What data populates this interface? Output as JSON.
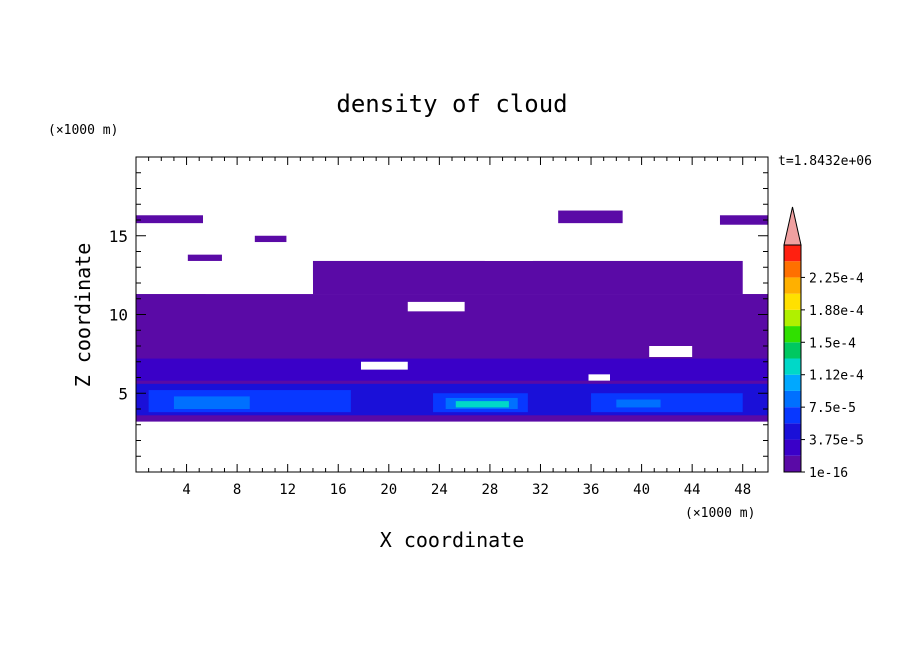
{
  "chart_data": {
    "type": "heatmap",
    "title": "density of cloud",
    "time_label": "t=1.8432e+06",
    "xlabel": "X coordinate",
    "ylabel": "Z coordinate",
    "x_unit": "(×1000 m)",
    "y_unit": "(×1000 m)",
    "xlim": [
      0,
      50
    ],
    "ylim": [
      0,
      20
    ],
    "x_ticks": [
      "4",
      "8",
      "12",
      "16",
      "20",
      "24",
      "28",
      "32",
      "36",
      "40",
      "44",
      "48"
    ],
    "y_ticks": [
      "5",
      "10",
      "15"
    ],
    "colorbar": {
      "labels": [
        "2.25e-4",
        "1.88e-4",
        "1.5e-4",
        "1.12e-4",
        "7.5e-5",
        "3.75e-5",
        "1e-16"
      ],
      "levels": [
        1e-16,
        1.875e-05,
        3.75e-05,
        5.625e-05,
        7.5e-05,
        9.375e-05,
        0.000112,
        0.00013125,
        0.00015,
        0.00016875,
        0.000188,
        0.00020625,
        0.000225,
        0.00024375
      ],
      "colors": [
        "#5a0aa6",
        "#3a00c8",
        "#1a10d8",
        "#0838ff",
        "#0070ff",
        "#00a8ff",
        "#00d8c8",
        "#00c860",
        "#30e000",
        "#b0f000",
        "#ffe000",
        "#ffb000",
        "#ff7000",
        "#ff2010"
      ],
      "over_color": "#f0a0a0"
    },
    "regions": [
      {
        "level": 0,
        "x": [
          0,
          50
        ],
        "y": [
          3.2,
          11.3
        ]
      },
      {
        "level": 0,
        "x": [
          14,
          48
        ],
        "y": [
          11.3,
          13.4
        ]
      },
      {
        "level": 0,
        "x": [
          0,
          5.3
        ],
        "y": [
          15.8,
          16.3
        ]
      },
      {
        "level": 0,
        "x": [
          33.4,
          38.5
        ],
        "y": [
          15.8,
          16.6
        ]
      },
      {
        "level": 0,
        "x": [
          46.2,
          50
        ],
        "y": [
          15.7,
          16.3
        ]
      },
      {
        "level": 0,
        "x": [
          9.4,
          11.9
        ],
        "y": [
          14.6,
          15.0
        ]
      },
      {
        "level": 0,
        "x": [
          4.1,
          6.8
        ],
        "y": [
          13.4,
          13.8
        ]
      },
      {
        "level": 1,
        "x": [
          0,
          50
        ],
        "y": [
          5.8,
          7.2
        ]
      },
      {
        "level": 2,
        "x": [
          0,
          50
        ],
        "y": [
          3.6,
          5.6
        ]
      },
      {
        "level": 3,
        "x": [
          1,
          17
        ],
        "y": [
          3.8,
          5.2
        ]
      },
      {
        "level": 3,
        "x": [
          23.5,
          31
        ],
        "y": [
          3.8,
          5.0
        ]
      },
      {
        "level": 3,
        "x": [
          36,
          48
        ],
        "y": [
          3.8,
          5.0
        ]
      },
      {
        "level": 4,
        "x": [
          3,
          9
        ],
        "y": [
          4.0,
          4.8
        ]
      },
      {
        "level": 4,
        "x": [
          24.5,
          30.2
        ],
        "y": [
          4.0,
          4.7
        ]
      },
      {
        "level": 4,
        "x": [
          38,
          41.5
        ],
        "y": [
          4.1,
          4.6
        ]
      },
      {
        "level": 6,
        "x": [
          25.3,
          29.5
        ],
        "y": [
          4.1,
          4.5
        ]
      }
    ],
    "gaps": [
      {
        "x": [
          21.5,
          26
        ],
        "y": [
          10.2,
          10.8
        ]
      },
      {
        "x": [
          40.6,
          44
        ],
        "y": [
          7.3,
          8.0
        ]
      },
      {
        "x": [
          17.8,
          21.5
        ],
        "y": [
          6.5,
          7.0
        ]
      },
      {
        "x": [
          35.8,
          37.5
        ],
        "y": [
          5.8,
          6.2
        ]
      },
      {
        "x": [
          27.6,
          31.4
        ],
        "y": [
          13.4,
          14.4
        ]
      },
      {
        "x": [
          5.5,
          14
        ],
        "y": [
          11.3,
          12.2
        ]
      }
    ]
  }
}
